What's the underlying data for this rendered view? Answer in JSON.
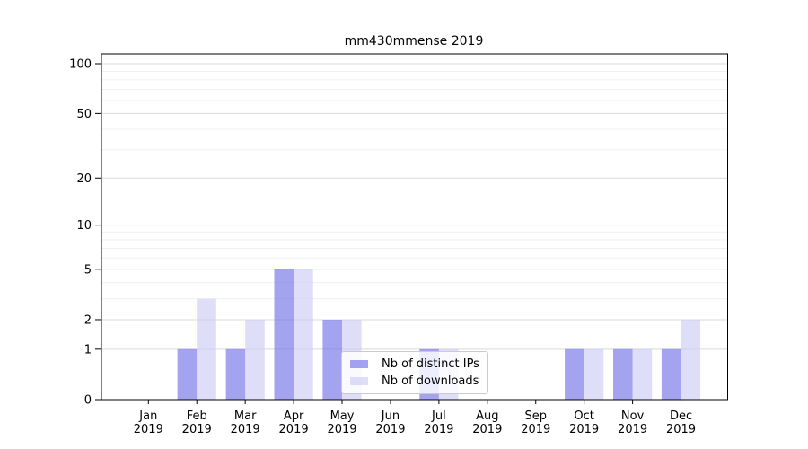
{
  "chart_data": {
    "type": "bar",
    "title": "mm430mmense 2019",
    "categories": [
      "Jan\n2019",
      "Feb\n2019",
      "Mar\n2019",
      "Apr\n2019",
      "May\n2019",
      "Jun\n2019",
      "Jul\n2019",
      "Aug\n2019",
      "Sep\n2019",
      "Oct\n2019",
      "Nov\n2019",
      "Dec\n2019"
    ],
    "series": [
      {
        "name": "Nb of distinct IPs",
        "color": "#6a6ae6",
        "values": [
          0,
          1,
          1,
          5,
          2,
          0,
          1,
          0,
          0,
          1,
          1,
          1
        ]
      },
      {
        "name": "Nb of downloads",
        "color": "#c9c9f5",
        "values": [
          0,
          3,
          2,
          5,
          2,
          0,
          1,
          0,
          0,
          1,
          1,
          2
        ]
      }
    ],
    "xlabel": "",
    "ylabel": "",
    "y_scale": "log1p",
    "ylim": [
      0,
      115
    ],
    "y_major_ticks": [
      0,
      1,
      2,
      5,
      10,
      20,
      50,
      100
    ],
    "y_minor_gridlines": [
      3,
      4,
      6,
      7,
      8,
      9,
      30,
      40,
      60,
      70,
      80,
      90
    ],
    "grid": true,
    "legend_position": "inside-bottom-center",
    "colors": {
      "grid_major": "#d9d9d9",
      "grid_minor": "#f0f0f0",
      "axis": "#000000",
      "text": "#000000",
      "background": "#ffffff",
      "bar_fill_opacity": 0.62
    }
  }
}
